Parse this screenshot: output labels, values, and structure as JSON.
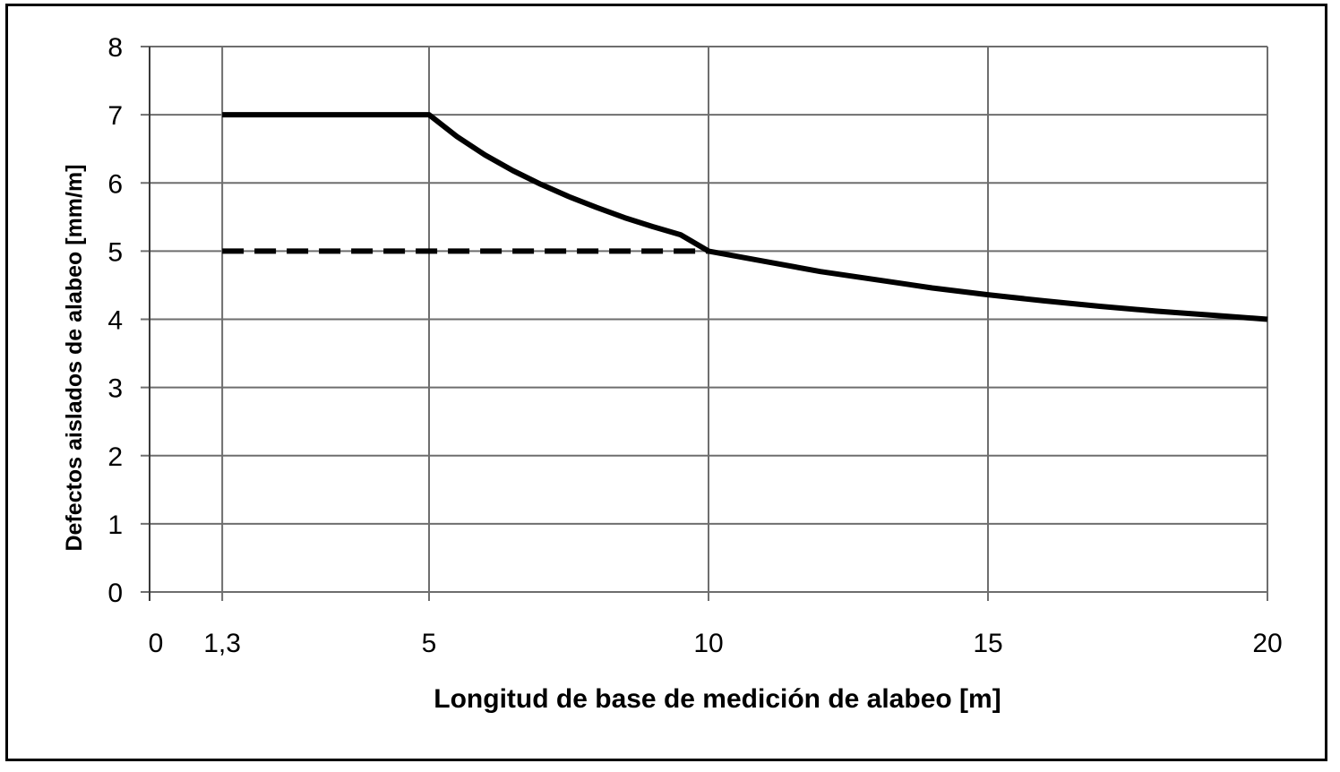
{
  "chart_data": {
    "type": "line",
    "xlabel": "Longitud de base de medición de alabeo [m]",
    "ylabel": "Defectos  aislados  de  alabeo [mm/m]",
    "xlim": [
      0,
      20
    ],
    "ylim": [
      0,
      8
    ],
    "x_ticks": [
      {
        "value": 0,
        "label": "0"
      },
      {
        "value": 1.3,
        "label": "1,3"
      },
      {
        "value": 5,
        "label": "5"
      },
      {
        "value": 10,
        "label": "10"
      },
      {
        "value": 15,
        "label": "15"
      },
      {
        "value": 20,
        "label": "20"
      }
    ],
    "y_ticks": [
      0,
      1,
      2,
      3,
      4,
      5,
      6,
      7,
      8
    ],
    "grid": true,
    "series": [
      {
        "style": "solid",
        "color": "#000000",
        "points": [
          [
            1.3,
            7
          ],
          [
            5,
            7
          ],
          [
            5.5,
            6.68
          ],
          [
            6,
            6.41
          ],
          [
            6.5,
            6.18
          ],
          [
            7,
            5.98
          ],
          [
            7.5,
            5.8
          ],
          [
            8,
            5.64
          ],
          [
            8.5,
            5.49
          ],
          [
            9,
            5.36
          ],
          [
            9.5,
            5.24
          ],
          [
            10,
            5.0
          ],
          [
            11,
            4.85
          ],
          [
            12,
            4.7
          ],
          [
            13,
            4.58
          ],
          [
            14,
            4.46
          ],
          [
            15,
            4.36
          ],
          [
            16,
            4.27
          ],
          [
            17,
            4.19
          ],
          [
            18,
            4.12
          ],
          [
            19,
            4.06
          ],
          [
            20,
            4.0
          ]
        ]
      },
      {
        "style": "dashed",
        "color": "#000000",
        "points": [
          [
            1.3,
            5
          ],
          [
            10,
            5
          ]
        ]
      }
    ]
  }
}
